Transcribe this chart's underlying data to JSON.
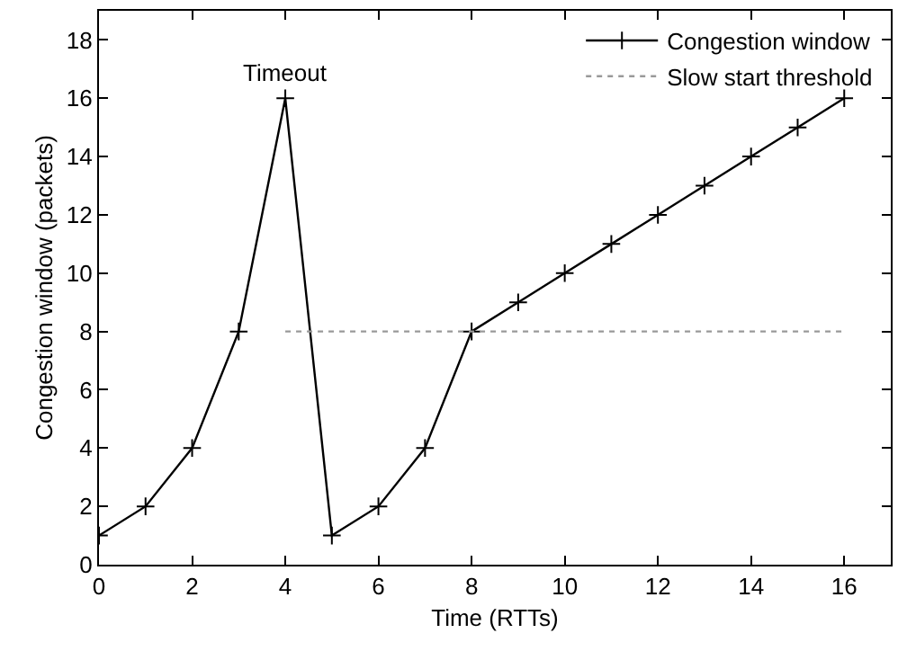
{
  "chart_data": {
    "type": "line",
    "xlabel": "Time (RTTs)",
    "ylabel": "Congestion window (packets)",
    "x": [
      0,
      1,
      2,
      3,
      4,
      5,
      6,
      7,
      8,
      9,
      10,
      11,
      12,
      13,
      14,
      15,
      16
    ],
    "series": [
      {
        "name": "Congestion window",
        "color": "#000000",
        "marker": "cross",
        "line_style": "solid",
        "values": [
          1,
          2,
          4,
          8,
          16,
          1,
          2,
          4,
          8,
          9,
          10,
          11,
          12,
          13,
          14,
          15,
          16
        ]
      },
      {
        "name": "Slow start threshold",
        "color": "#999999",
        "marker": "none",
        "line_style": "dotted",
        "x": [
          4,
          16
        ],
        "values": [
          8,
          8
        ]
      }
    ],
    "annotations": [
      {
        "text": "Timeout",
        "x": 4,
        "y": 16
      }
    ],
    "xlim": [
      0,
      17
    ],
    "xticks": [
      0,
      2,
      4,
      6,
      8,
      10,
      12,
      14,
      16
    ],
    "ylim": [
      0,
      19
    ],
    "yticks": [
      0,
      2,
      4,
      6,
      8,
      10,
      12,
      14,
      16,
      18
    ],
    "legend": "top right"
  }
}
